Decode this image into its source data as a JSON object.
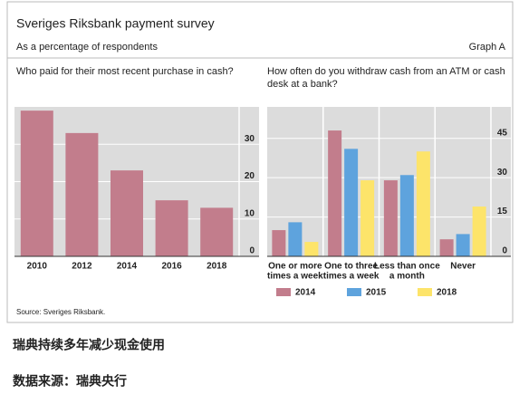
{
  "header": {
    "title": "Sveriges Riksbank payment survey",
    "subtitle": "As a percentage of respondents",
    "graph_label": "Graph A"
  },
  "chart_data": [
    {
      "type": "bar",
      "title": "Who paid for their most recent purchase in cash?",
      "categories": [
        "2010",
        "2012",
        "2014",
        "2016",
        "2018"
      ],
      "values": [
        39,
        33,
        23,
        15,
        13
      ],
      "color": "#c27d8c",
      "ylim": [
        0,
        40
      ],
      "yticks": [
        0,
        10,
        20,
        30
      ],
      "grid": true
    },
    {
      "type": "grouped-bar",
      "title": "How often do you withdraw cash from an ATM or cash desk at a bank?",
      "categories": [
        [
          "One or more",
          "times a week"
        ],
        [
          "One to three",
          "times a week"
        ],
        [
          "Less than once",
          "a month"
        ],
        [
          "Never"
        ]
      ],
      "series": [
        {
          "name": "2014",
          "color": "#c27d8c",
          "values": [
            10,
            48,
            29,
            6.5
          ]
        },
        {
          "name": "2015",
          "color": "#5ea3dd",
          "values": [
            13,
            41,
            31,
            8.5
          ]
        },
        {
          "name": "2018",
          "color": "#fde46a",
          "values": [
            5.5,
            29,
            40,
            19
          ]
        }
      ],
      "ylim": [
        0,
        57
      ],
      "yticks": [
        0,
        15,
        30,
        45
      ],
      "grid": true,
      "legend": "bottom"
    }
  ],
  "source": "Source: Sveriges Riksbank.",
  "caption": [
    "瑞典持续多年减少现金使用",
    "数据来源：瑞典央行"
  ]
}
